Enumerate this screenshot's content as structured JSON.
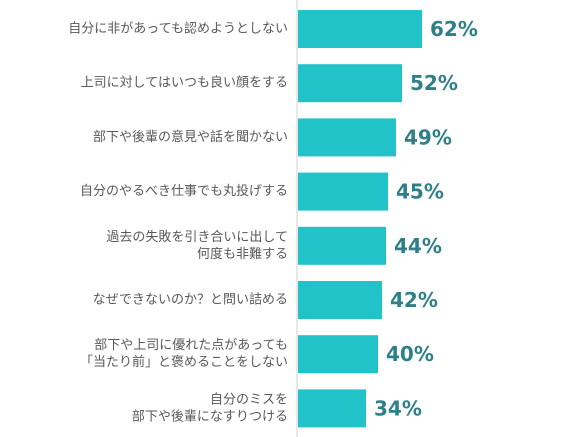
{
  "chart_data": {
    "type": "bar",
    "orientation": "horizontal",
    "categories": [
      [
        "自分に非があっても認めようとしない"
      ],
      [
        "上司に対してはいつも良い顔をする"
      ],
      [
        "部下や後輩の意見や話を聞かない"
      ],
      [
        "自分のやるべき仕事でも丸投げする"
      ],
      [
        "過去の失敗を引き合いに出して",
        "何度も非難する"
      ],
      [
        "なぜできないのか？と問い詰める"
      ],
      [
        "部下や上司に優れた点があっても",
        "「当たり前」と褒めることをしない"
      ],
      [
        "自分のミスを",
        "部下や後輩になすりつける"
      ]
    ],
    "values": [
      62,
      52,
      49,
      45,
      44,
      42,
      40,
      34
    ],
    "value_labels": [
      "62%",
      "52%",
      "49%",
      "45%",
      "44%",
      "42%",
      "40%",
      "34%"
    ],
    "xlim": [
      0,
      100
    ],
    "bar_color": "#22c3c8",
    "value_label_color": "#2e8088",
    "category_label_color": "#595959",
    "axis_color": "#d0d0d0",
    "grid": false,
    "legend": "none"
  }
}
